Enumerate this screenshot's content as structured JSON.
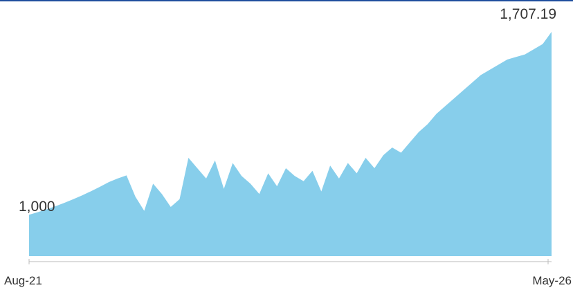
{
  "colors": {
    "header_rule": "#1f4e9e",
    "area_fill": "#87ceeb",
    "axis": "#bbbbbb",
    "text": "#333333"
  },
  "chart_data": {
    "type": "area",
    "title": "",
    "xlabel": "",
    "ylabel": "",
    "x_tick_labels": [
      "Aug-21",
      "May-26"
    ],
    "annotations": {
      "start_value_label": "1,000",
      "end_value_label": "1,707.19"
    },
    "grid": false,
    "legend": "none",
    "ylim": [
      840,
      1707.19
    ],
    "series": [
      {
        "values": [
          1000,
          1010,
          1021,
          1033,
          1046,
          1060,
          1075,
          1091,
          1108,
          1126,
          1140,
          1152,
          1070,
          1015,
          1120,
          1080,
          1030,
          1060,
          1220,
          1180,
          1140,
          1210,
          1100,
          1200,
          1150,
          1120,
          1080,
          1160,
          1110,
          1180,
          1150,
          1130,
          1170,
          1090,
          1190,
          1140,
          1200,
          1160,
          1220,
          1180,
          1230,
          1260,
          1240,
          1280,
          1320,
          1350,
          1390,
          1420,
          1450,
          1480,
          1510,
          1540,
          1560,
          1580,
          1600,
          1610,
          1620,
          1640,
          1660,
          1707.19
        ]
      }
    ]
  }
}
